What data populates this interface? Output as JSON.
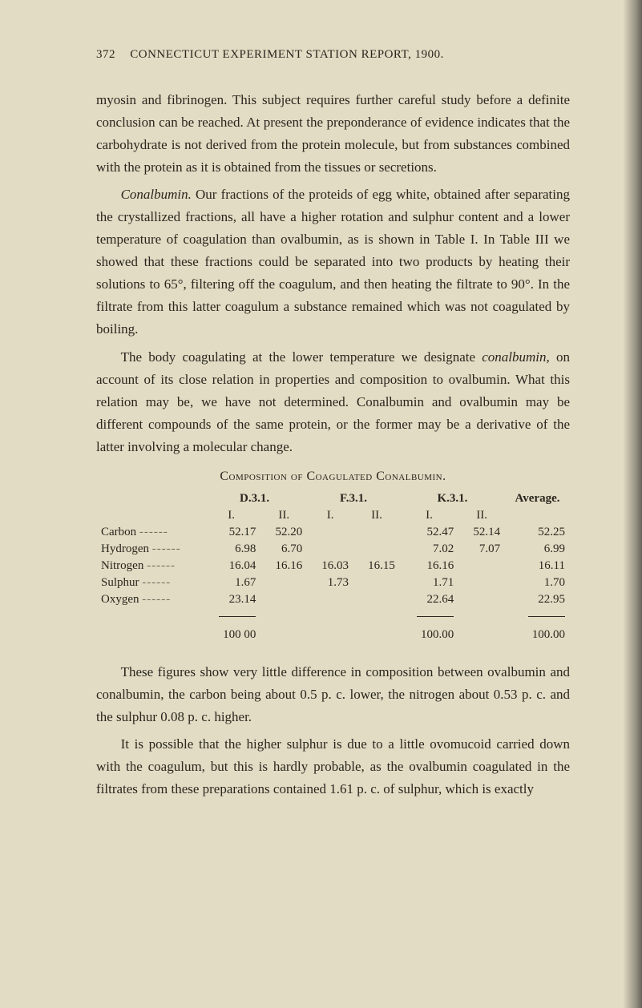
{
  "header": {
    "page_number": "372",
    "running_title": "CONNECTICUT EXPERIMENT STATION REPORT, 1900."
  },
  "paragraphs": {
    "p1": "myosin and fibrinogen. This subject requires further careful study before a definite conclusion can be reached. At present the preponderance of evidence indicates that the carbohydrate is not derived from the protein molecule, but from substances combined with the protein as it is obtained from the tissues or secretions.",
    "p2_lead_italic": "Conalbumin.",
    "p2_rest": " Our fractions of the proteids of egg white, obtained after separating the crystallized fractions, all have a higher rotation and sulphur content and a lower temperature of coagulation than ovalbumin, as is shown in Table I. In Table III we showed that these fractions could be separated into two products by heating their solutions to 65°, filtering off the coagulum, and then heating the filtrate to 90°. In the filtrate from this latter coagulum a substance remained which was not coagulated by boiling.",
    "p3_a": "The body coagulating at the lower temperature we designate ",
    "p3_italic": "conalbumin,",
    "p3_b": " on account of its close relation in properties and composition to ovalbumin. What this relation may be, we have not determined. Conalbumin and ovalbumin may be different compounds of the same protein, or the former may be a derivative of the latter involving a molecular change.",
    "p4": "These figures show very little difference in composition between ovalbumin and conalbumin, the carbon being about 0.5 p. c. lower, the nitrogen about 0.53 p. c. and the sulphur 0.08 p. c. higher.",
    "p5": "It is possible that the higher sulphur is due to a little ovomucoid carried down with the coagulum, but this is hardly probable, as the ovalbumin coagulated in the filtrates from these preparations contained 1.61 p. c. of sulphur, which is exactly"
  },
  "table": {
    "title": "Composition of Coagulated Conalbumin.",
    "col_groups": [
      "D.3.1.",
      "F.3.1.",
      "K.3.1.",
      "Average."
    ],
    "sub_cols": [
      "I.",
      "II.",
      "I.",
      "II.",
      "I.",
      "II."
    ],
    "rows": [
      {
        "label": "Carbon",
        "d1": "52.17",
        "d2": "52.20",
        "f1": "",
        "f2": "",
        "k1": "52.47",
        "avg_sub": "52.14",
        "avg": "52.25"
      },
      {
        "label": "Hydrogen",
        "d1": "6.98",
        "d2": "6.70",
        "f1": "",
        "f2": "",
        "k1": "7.02",
        "avg_sub": "7.07",
        "avg": "6.99"
      },
      {
        "label": "Nitrogen",
        "d1": "16.04",
        "d2": "16.16",
        "f1": "16.03",
        "f2": "16.15",
        "k1": "16.16",
        "avg_sub": "",
        "avg": "16.11"
      },
      {
        "label": "Sulphur",
        "d1": "1.67",
        "d2": "",
        "f1": "1.73",
        "f2": "",
        "k1": "1.71",
        "avg_sub": "",
        "avg": "1.70"
      },
      {
        "label": "Oxygen",
        "d1": "23.14",
        "d2": "",
        "f1": "",
        "f2": "",
        "k1": "22.64",
        "avg_sub": "",
        "avg": "22.95"
      }
    ],
    "totals": {
      "d1": "100 00",
      "k1": "100.00",
      "avg": "100.00"
    }
  },
  "colors": {
    "page_bg": "#e2dcc4",
    "text": "#2a261e"
  }
}
